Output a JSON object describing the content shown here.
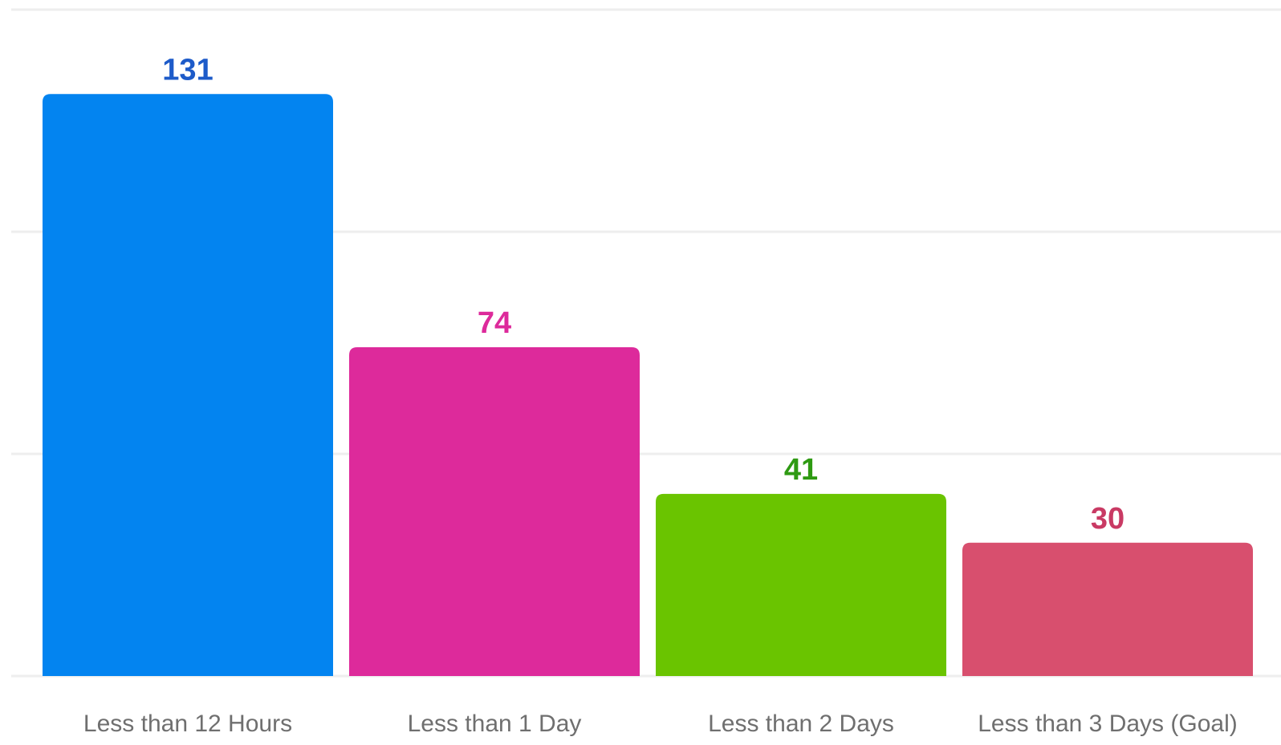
{
  "chart_data": {
    "type": "bar",
    "categories": [
      "Less than 12 Hours",
      "Less than 1 Day",
      "Less than 2 Days",
      "Less than 3 Days (Goal)"
    ],
    "values": [
      131,
      74,
      41,
      30
    ],
    "bar_colors": [
      "#0384f0",
      "#dd2a9b",
      "#6ac400",
      "#d84f6e"
    ],
    "label_colors": [
      "#1d5bc9",
      "#dd2a9b",
      "#2e9a12",
      "#c93a64"
    ],
    "gridline_color": "#eeeeee",
    "ylim": [
      0,
      150
    ],
    "grid": true,
    "data_labels": true,
    "title": "",
    "xlabel": "",
    "ylabel": ""
  }
}
